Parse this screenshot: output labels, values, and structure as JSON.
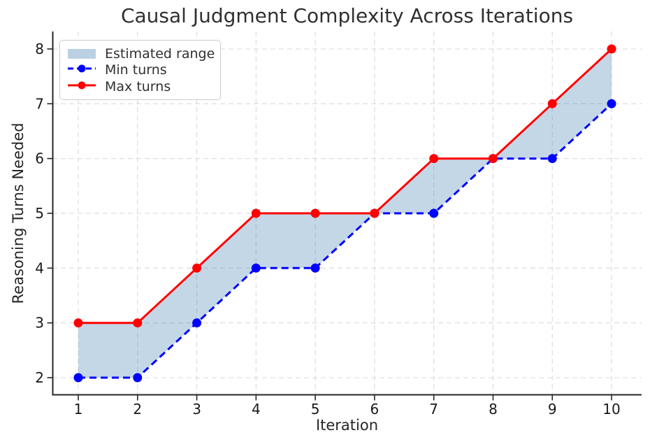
{
  "figure": {
    "title": "Causal Judgment Complexity Across Iterations"
  },
  "chart_data": {
    "type": "line",
    "title": "Causal Judgment Complexity Across Iterations",
    "xlabel": "Iteration",
    "ylabel": "Reasoning Turns Needed",
    "x": [
      1,
      2,
      3,
      4,
      5,
      6,
      7,
      8,
      9,
      10
    ],
    "series": [
      {
        "name": "Min turns",
        "values": [
          2,
          2,
          3,
          4,
          4,
          5,
          5,
          6,
          6,
          7
        ],
        "color": "#0000ff",
        "line_style": "dashed",
        "marker": "circle"
      },
      {
        "name": "Max turns",
        "values": [
          3,
          3,
          4,
          5,
          5,
          5,
          6,
          6,
          7,
          8
        ],
        "color": "#ff0000",
        "line_style": "solid",
        "marker": "circle"
      }
    ],
    "band": {
      "name": "Estimated range",
      "lower_series": "Min turns",
      "upper_series": "Max turns",
      "fill_color": "#4682b4",
      "fill_opacity": 0.32
    },
    "xticks": [
      1,
      2,
      3,
      4,
      5,
      6,
      7,
      8,
      9,
      10
    ],
    "yticks": [
      2,
      3,
      4,
      5,
      6,
      7,
      8
    ],
    "xlim": [
      0.55,
      10.45
    ],
    "ylim": [
      1.7,
      8.3
    ],
    "grid": true,
    "grid_color": "#d9d9d9",
    "axis_color": "#262626",
    "tick_label_color": "#1a1a1a",
    "legend_position": "upper-left"
  },
  "legend": {
    "items": [
      {
        "label": "Estimated range",
        "swatch": "patch"
      },
      {
        "label": "Min turns",
        "swatch": "dashed-line-with-marker"
      },
      {
        "label": "Max turns",
        "swatch": "solid-line-with-marker"
      }
    ]
  }
}
